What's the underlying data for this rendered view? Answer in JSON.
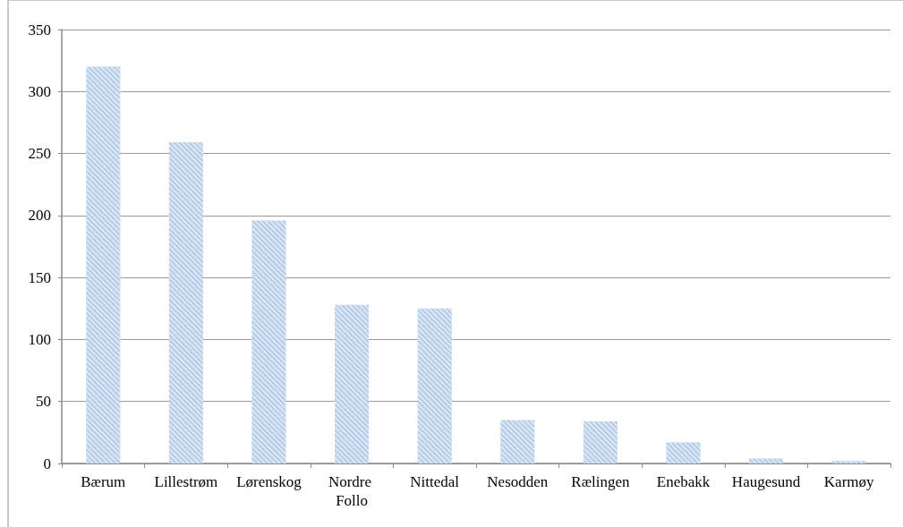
{
  "chart_data": {
    "type": "bar",
    "categories": [
      "Bærum",
      "Lillestrøm",
      "Lørenskog",
      "Nordre Follo",
      "Nittedal",
      "Nesodden",
      "Rælingen",
      "Enebakk",
      "Haugesund",
      "Karmøy"
    ],
    "values": [
      320,
      259,
      196,
      128,
      125,
      35,
      34,
      17,
      4,
      2
    ],
    "color": "#b4cce8",
    "ylim": [
      0,
      350
    ],
    "yticks": [
      0,
      50,
      100,
      150,
      200,
      250,
      300,
      350
    ],
    "grid": "y"
  }
}
